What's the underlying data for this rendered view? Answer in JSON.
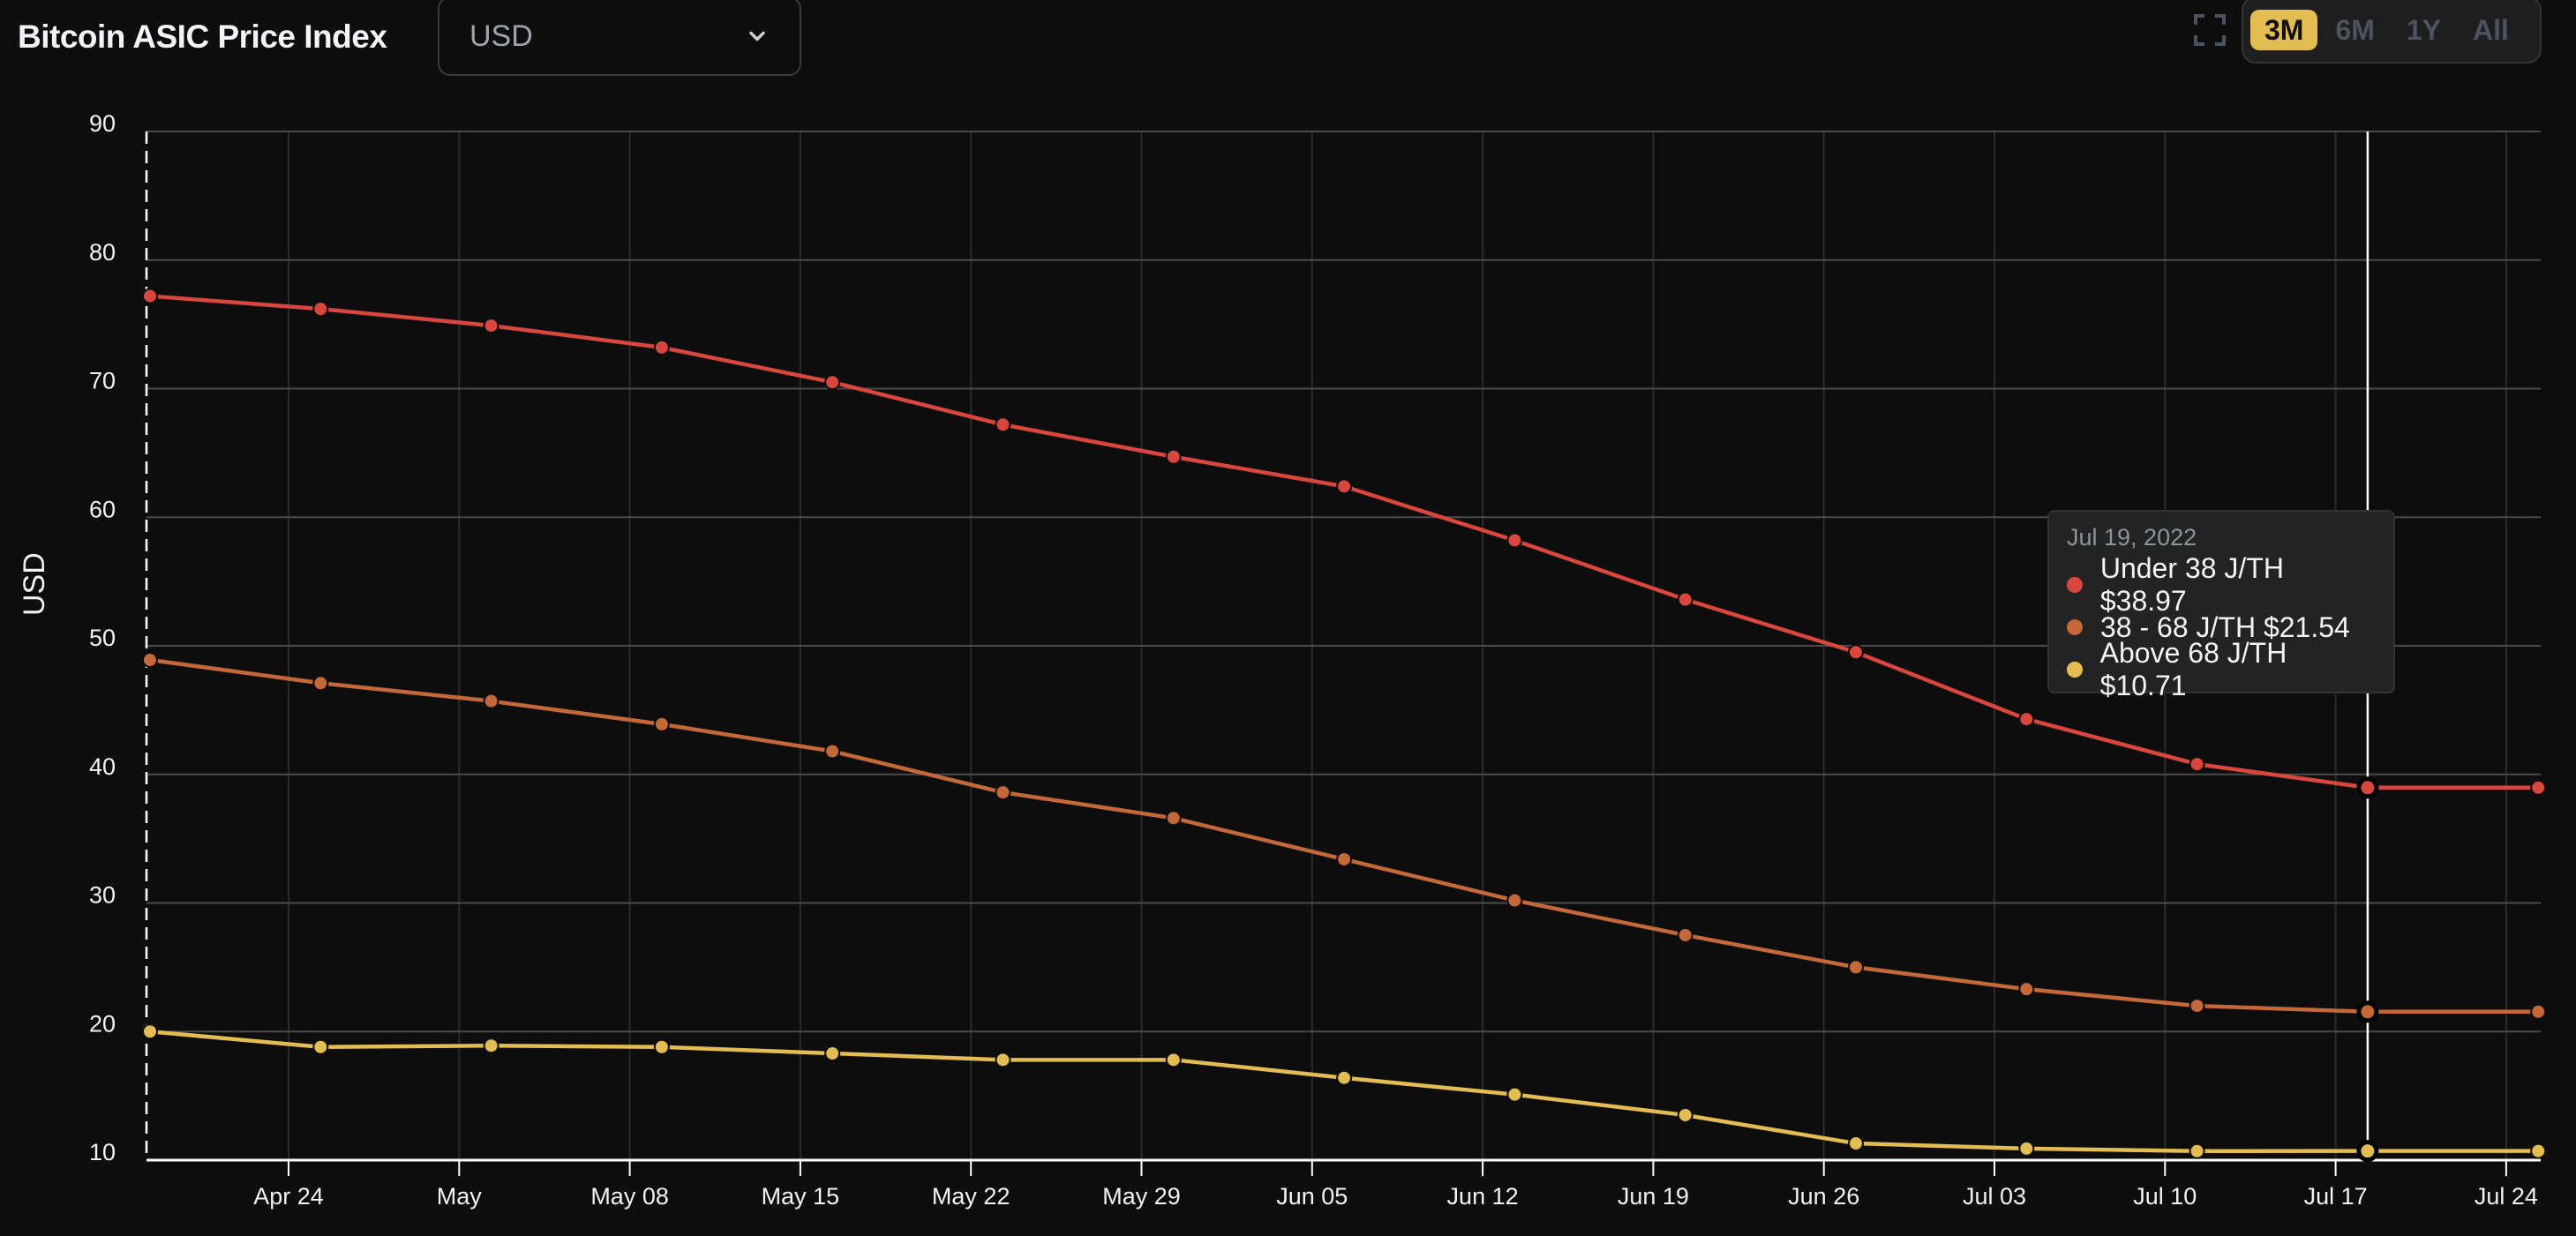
{
  "header": {
    "title": "Bitcoin ASIC Price Index",
    "currency_select": {
      "value": "USD",
      "icon": "chevron-down-icon"
    },
    "fullscreen_icon": "fullscreen-icon",
    "range_buttons": [
      {
        "label": "3M",
        "active": true
      },
      {
        "label": "6M",
        "active": false
      },
      {
        "label": "1Y",
        "active": false
      },
      {
        "label": "All",
        "active": false
      }
    ]
  },
  "colors": {
    "background": "#0d0d0d",
    "under_38": "#d9463e",
    "mid_38_68": "#c4683a",
    "above_68": "#e3bc52",
    "accent": "#e3bc52"
  },
  "tooltip": {
    "date": "Jul 19, 2022",
    "rows": [
      {
        "label": "Under 38 J/TH $38.97",
        "color": "#d9463e"
      },
      {
        "label": "38 - 68 J/TH $21.54",
        "color": "#c4683a"
      },
      {
        "label": "Above 68 J/TH $10.71",
        "color": "#e3bc52"
      }
    ]
  },
  "chart_data": {
    "type": "line",
    "title": "Bitcoin ASIC Price Index",
    "xlabel": "",
    "ylabel": "USD",
    "ylim": [
      10,
      90
    ],
    "yticks": [
      10,
      20,
      30,
      40,
      50,
      60,
      70,
      80,
      90
    ],
    "xtick_labels": [
      "Apr 24",
      "May",
      "May 08",
      "May 15",
      "May 22",
      "May 29",
      "Jun 05",
      "Jun 12",
      "Jun 19",
      "Jun 26",
      "Jul 03",
      "Jul 10",
      "Jul 17",
      "Jul 24"
    ],
    "grid": true,
    "legend": "tooltip",
    "x": [
      "2022-04-19",
      "2022-04-26",
      "2022-05-03",
      "2022-05-10",
      "2022-05-17",
      "2022-05-24",
      "2022-05-31",
      "2022-06-07",
      "2022-06-14",
      "2022-06-21",
      "2022-06-28",
      "2022-07-05",
      "2022-07-12",
      "2022-07-19",
      "2022-07-26"
    ],
    "series": [
      {
        "name": "Under 38 J/TH",
        "color": "#d9463e",
        "values": [
          77.2,
          76.2,
          74.9,
          73.2,
          70.5,
          67.2,
          64.7,
          62.4,
          58.2,
          53.6,
          49.5,
          44.3,
          40.8,
          38.97,
          38.97
        ]
      },
      {
        "name": "38 - 68 J/TH",
        "color": "#c4683a",
        "values": [
          48.9,
          47.1,
          45.7,
          43.9,
          41.8,
          38.6,
          36.6,
          33.4,
          30.2,
          27.5,
          25.0,
          23.3,
          22.0,
          21.54,
          21.54
        ]
      },
      {
        "name": "Above 68 J/TH",
        "color": "#e3bc52",
        "values": [
          20.0,
          18.8,
          18.9,
          18.8,
          18.3,
          17.8,
          17.8,
          16.4,
          15.1,
          13.5,
          11.3,
          10.9,
          10.7,
          10.71,
          10.71
        ]
      }
    ],
    "hover_index": 13
  }
}
